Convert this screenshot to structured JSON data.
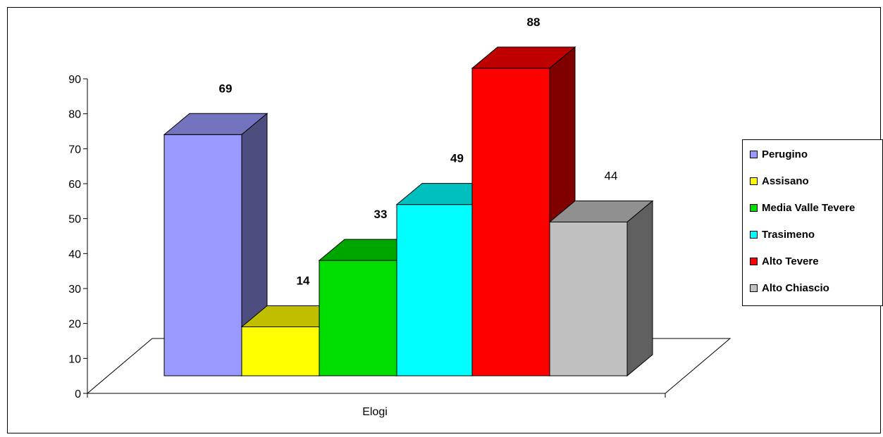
{
  "chart_data": {
    "type": "bar",
    "three_d": true,
    "categories": [
      "Elogi"
    ],
    "series": [
      {
        "name": "Perugino",
        "values": [
          69
        ],
        "color": "#9999FF",
        "label": "69"
      },
      {
        "name": "Assisano",
        "values": [
          14
        ],
        "color": "#FFFF00",
        "label": "14"
      },
      {
        "name": "Media Valle Tevere",
        "values": [
          33
        ],
        "color": "#00DD00",
        "label": "33"
      },
      {
        "name": "Trasimeno",
        "values": [
          49
        ],
        "color": "#00FFFF",
        "label": "49"
      },
      {
        "name": "Alto Tevere",
        "values": [
          88
        ],
        "color": "#FF0000",
        "label": "88"
      },
      {
        "name": "Alto Chiascio",
        "values": [
          44
        ],
        "color": "#C0C0C0",
        "label": "44"
      }
    ],
    "ylim": [
      0,
      90
    ],
    "yticks": [
      "0",
      "10",
      "20",
      "30",
      "40",
      "50",
      "60",
      "70",
      "80",
      "90"
    ],
    "legend": "right",
    "grid": false
  }
}
